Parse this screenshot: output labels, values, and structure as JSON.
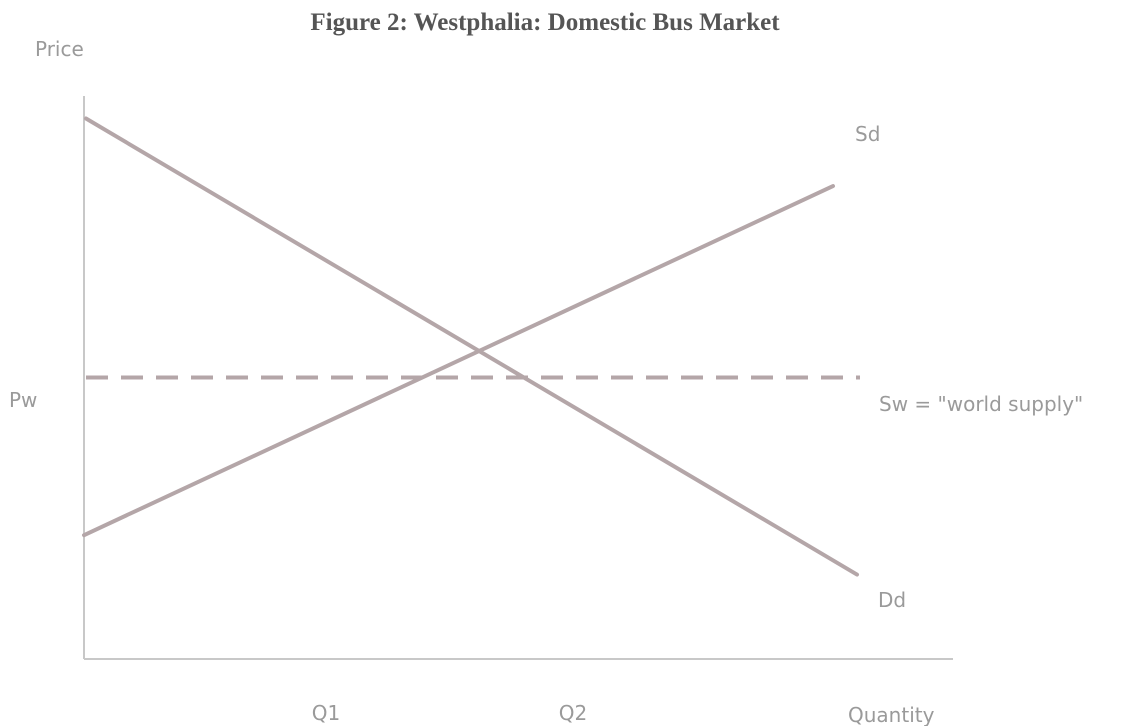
{
  "document": {
    "title": "Figure 2: Westphalia: Domestic Bus Market"
  },
  "chart_data": {
    "type": "line",
    "title": "Figure 2: Westphalia: Domestic Bus Market",
    "xlabel": "Quantity",
    "ylabel": "Price",
    "x_ticks": [
      "Q1",
      "Q2"
    ],
    "y_ticks": [
      "Pw"
    ],
    "grid": false,
    "series": [
      {
        "name": "Sd",
        "style": "solid",
        "color": "#b4a6a8",
        "points": [
          [
            0,
            0.22
          ],
          [
            1,
            0.84
          ]
        ]
      },
      {
        "name": "Dd",
        "style": "solid",
        "color": "#b4a6a8",
        "points": [
          [
            0,
            0.96
          ],
          [
            1,
            0.15
          ]
        ]
      },
      {
        "name": "Sw = \"world supply\"",
        "style": "dashed",
        "color": "#b4a6a8",
        "points": [
          [
            0,
            0.5
          ],
          [
            1,
            0.5
          ]
        ]
      }
    ],
    "reference_points": {
      "Q1": 0.37,
      "Q2": 0.62,
      "Pw": 0.5
    }
  }
}
